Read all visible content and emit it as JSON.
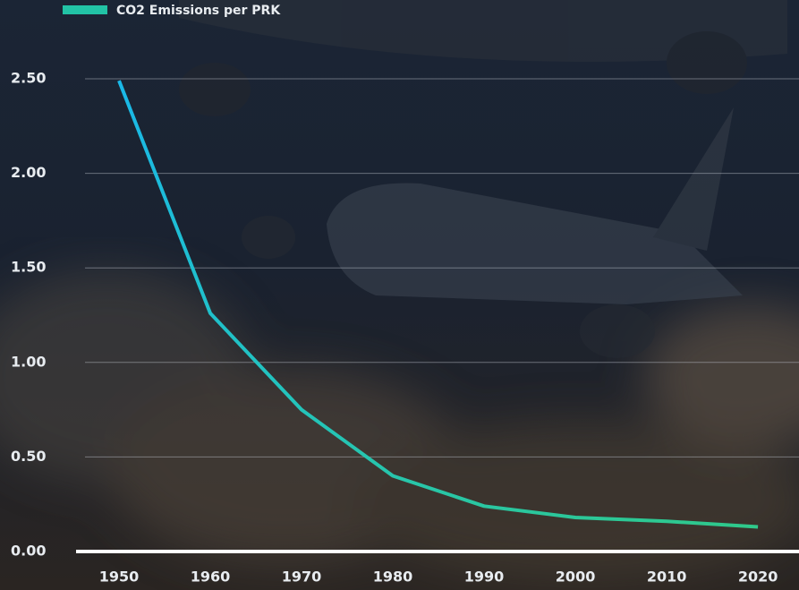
{
  "chart_data": {
    "type": "line",
    "x": [
      1950,
      1960,
      1970,
      1980,
      1990,
      2000,
      2010,
      2020
    ],
    "series": [
      {
        "name": "CO2 Emissions per PRK",
        "color": "#22c3a6",
        "values": [
          2.49,
          1.26,
          0.75,
          0.4,
          0.24,
          0.18,
          0.16,
          0.13
        ]
      }
    ],
    "xlim": [
      1945,
      2024.5
    ],
    "xticks": [
      1950,
      1960,
      1970,
      1980,
      1990,
      2000,
      2010,
      2020
    ],
    "ylim": [
      0,
      2.5
    ],
    "yticks": [
      {
        "value": 0,
        "label": "0.00"
      },
      {
        "value": 0.5,
        "label": "0.50"
      },
      {
        "value": 1,
        "label": "1.00"
      },
      {
        "value": 1.5,
        "label": "1.50"
      },
      {
        "value": 2,
        "label": "2.00"
      },
      {
        "value": 2.5,
        "label": "2.50"
      }
    ],
    "grid": true
  }
}
